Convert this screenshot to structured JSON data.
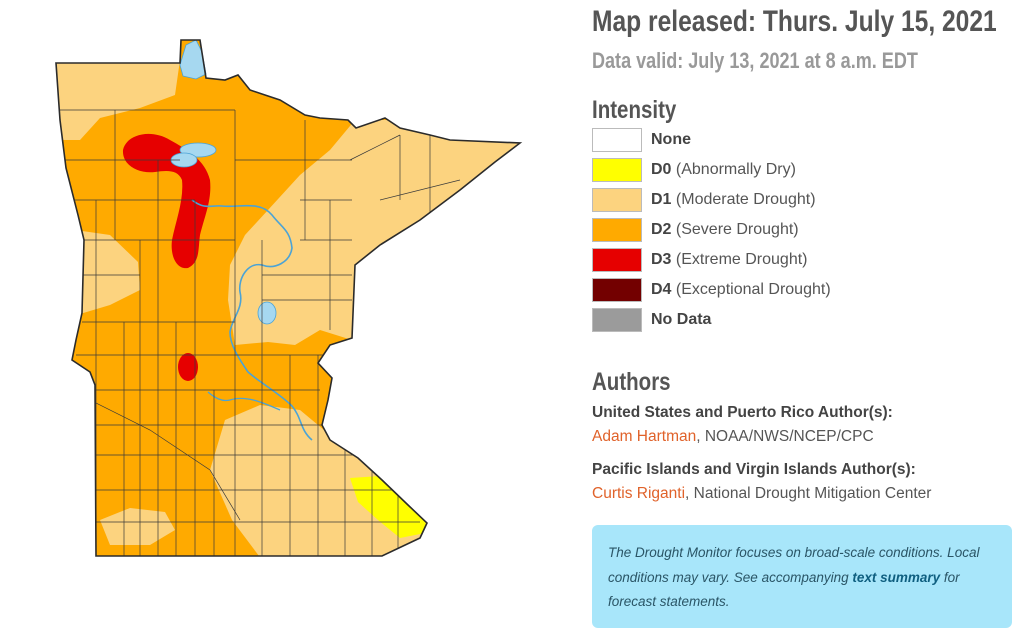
{
  "header": {
    "released": "Map released: Thurs. July 15, 2021",
    "valid": "Data valid: July 13, 2021 at 8 a.m. EDT"
  },
  "legend": {
    "title": "Intensity",
    "items": [
      {
        "code": "None",
        "desc": "",
        "color": "#ffffff"
      },
      {
        "code": "D0",
        "desc": "(Abnormally Dry)",
        "color": "#ffff00"
      },
      {
        "code": "D1",
        "desc": "(Moderate Drought)",
        "color": "#fcd37f"
      },
      {
        "code": "D2",
        "desc": "(Severe Drought)",
        "color": "#ffaa00"
      },
      {
        "code": "D3",
        "desc": "(Extreme Drought)",
        "color": "#e60000"
      },
      {
        "code": "D4",
        "desc": "(Exceptional Drought)",
        "color": "#730000"
      },
      {
        "code": "No Data",
        "desc": "",
        "color": "#9b9b9b"
      }
    ]
  },
  "authors": {
    "title": "Authors",
    "groups": [
      {
        "label": "United States and Puerto Rico Author(s):",
        "name": "Adam Hartman",
        "affiliation": ", NOAA/NWS/NCEP/CPC"
      },
      {
        "label": "Pacific Islands and Virgin Islands Author(s):",
        "name": "Curtis Riganti",
        "affiliation": ", National Drought Mitigation Center"
      }
    ]
  },
  "note": {
    "before": "The Drought Monitor focuses on broad-scale conditions. Local conditions may vary. See accompanying ",
    "link": "text summary",
    "after": " for forecast statements."
  },
  "map": {
    "colors": {
      "d0": "#ffff00",
      "d1": "#fcd37f",
      "d2": "#ffaa00",
      "d3": "#e60000",
      "water": "#a6d8f0",
      "river": "#4ba3d6",
      "outline": "#2b2b2b"
    }
  }
}
